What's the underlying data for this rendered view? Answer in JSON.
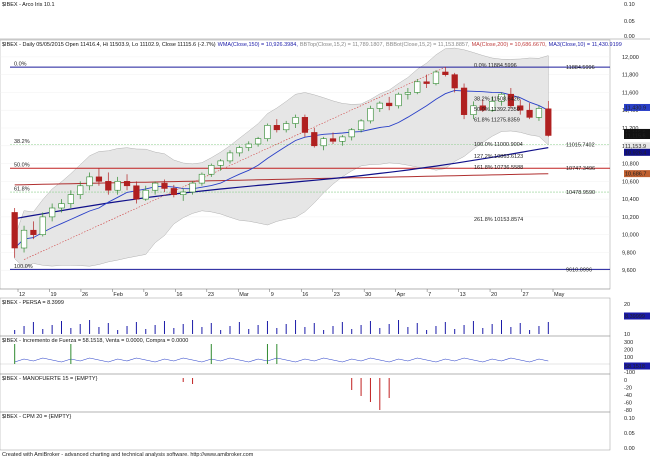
{
  "window_title": "$IBEX - Arco Iris 10.1",
  "main_header": {
    "symbol": "$IBEX - Daily 05/05/2015 Open 11416.4, Hi 11503.9, Lo 11102.9, Close 11115.6 (-2.7%)",
    "wma": "WMA(Close,150) = 10,926.3984,",
    "bbtop": "BBTop(Close,15,2) = 11,789.1807,",
    "bbbot": "BBBot(Close,15,2) = 11,153.8857,",
    "ma200": "MA(Close,200) = 10,686.6670,",
    "ma3": "MA3(Close,10) = 11,430.9199"
  },
  "price_axis_ticks": [
    "12,000",
    "11,800",
    "11,600",
    "11,400",
    "11,200",
    "11,000",
    "10,800",
    "10,600",
    "10,400",
    "10,200",
    "10,000",
    "9,800",
    "9,600"
  ],
  "price_axis_badges": {
    "ma10": "11,430.9",
    "close": "11,115.6",
    "close2": "11,115.6",
    "bbbot": "11,153.9",
    "wma": "10,926.4",
    "ma200": "10,686.7"
  },
  "time_axis": [
    "12",
    "19",
    "26",
    "Feb",
    "9",
    "16",
    "23",
    "Mar",
    "9",
    "16",
    "23",
    "30",
    "Apr",
    "7",
    "13",
    "20",
    "27",
    "May"
  ],
  "fib_levels": [
    {
      "label": "0.0%",
      "value": "11884.5996"
    },
    {
      "label": "38.2%",
      "value": "11015.7402"
    },
    {
      "label": "50.0%",
      "value": "10747.3496"
    },
    {
      "label": "61.8%",
      "value": "10478.9590"
    },
    {
      "label": "100.0%",
      "value": "9610.0996"
    }
  ],
  "fib_retracement_labels": [
    "0.0% 11884.5996",
    "38.2% 11508.6426",
    "50.0% 11392.2350",
    "61.8% 11275.8359",
    "100.0% 11000.9004",
    "127.2% 10863.6123",
    "161.8% 10736.5588",
    "261.8% 10153.8574"
  ],
  "indicator_panels": [
    {
      "title": "$IBEX - PERSA = 8.3999",
      "axis": [
        "20",
        "10"
      ],
      "badge": "8.39999"
    },
    {
      "title": "$IBEX - Incremento de Fuerza = 58.1518, Venta = 0.0000, Compra = 0.0000",
      "axis": [
        "300",
        "200",
        "100",
        "0",
        "-100"
      ],
      "badge": "58.1518"
    },
    {
      "title": "$IBEX - MANOFUERTE 15 = {EMPTY}",
      "axis": [
        "0",
        "-20",
        "-40",
        "-60",
        "-80"
      ],
      "badge": ""
    },
    {
      "title": "$IBEX - CPM 20 = {EMPTY}",
      "axis": [
        "0.10",
        "0.05",
        "0.00"
      ],
      "badge": ""
    }
  ],
  "top_axis": [
    "0.10",
    "0.05",
    "0.00"
  ],
  "footer": "Created with AmiBroker - advanced charting and technical analysis software. http://www.amibroker.com",
  "chart_data": {
    "type": "candlestick",
    "title": "$IBEX - Daily",
    "ylim": [
      9400,
      12100
    ],
    "x_labels": [
      "12",
      "19",
      "26",
      "Feb",
      "9",
      "16",
      "23",
      "Mar",
      "9",
      "16",
      "23",
      "30",
      "Apr",
      "7",
      "13",
      "20",
      "27",
      "May"
    ],
    "candles": [
      [
        10250,
        10300,
        9740,
        9850
      ],
      [
        9850,
        10100,
        9800,
        10050
      ],
      [
        10050,
        10150,
        9950,
        10000
      ],
      [
        10000,
        10250,
        9980,
        10200
      ],
      [
        10200,
        10350,
        10150,
        10300
      ],
      [
        10300,
        10400,
        10250,
        10350
      ],
      [
        10350,
        10500,
        10300,
        10450
      ],
      [
        10450,
        10600,
        10400,
        10550
      ],
      [
        10550,
        10700,
        10500,
        10650
      ],
      [
        10650,
        10750,
        10550,
        10600
      ],
      [
        10600,
        10700,
        10450,
        10500
      ],
      [
        10500,
        10650,
        10450,
        10600
      ],
      [
        10600,
        10680,
        10500,
        10550
      ],
      [
        10550,
        10600,
        10350,
        10400
      ],
      [
        10400,
        10550,
        10380,
        10500
      ],
      [
        10500,
        10600,
        10450,
        10580
      ],
      [
        10580,
        10620,
        10480,
        10520
      ],
      [
        10520,
        10560,
        10420,
        10450
      ],
      [
        10450,
        10520,
        10380,
        10480
      ],
      [
        10480,
        10600,
        10450,
        10580
      ],
      [
        10580,
        10700,
        10550,
        10680
      ],
      [
        10680,
        10800,
        10650,
        10780
      ],
      [
        10780,
        10850,
        10720,
        10830
      ],
      [
        10830,
        10950,
        10800,
        10920
      ],
      [
        10920,
        11000,
        10880,
        10980
      ],
      [
        10980,
        11050,
        10940,
        11020
      ],
      [
        11020,
        11100,
        10990,
        11080
      ],
      [
        11080,
        11250,
        11050,
        11230
      ],
      [
        11230,
        11300,
        11150,
        11180
      ],
      [
        11180,
        11280,
        11150,
        11250
      ],
      [
        11250,
        11350,
        11200,
        11320
      ],
      [
        11320,
        11350,
        11100,
        11150
      ],
      [
        11150,
        11200,
        10980,
        11000
      ],
      [
        11000,
        11100,
        10950,
        11080
      ],
      [
        11080,
        11150,
        11020,
        11050
      ],
      [
        11050,
        11120,
        11000,
        11100
      ],
      [
        11100,
        11200,
        11060,
        11180
      ],
      [
        11180,
        11300,
        11150,
        11280
      ],
      [
        11280,
        11450,
        11250,
        11420
      ],
      [
        11420,
        11500,
        11380,
        11480
      ],
      [
        11480,
        11550,
        11400,
        11450
      ],
      [
        11450,
        11600,
        11420,
        11580
      ],
      [
        11580,
        11650,
        11520,
        11600
      ],
      [
        11600,
        11750,
        11580,
        11720
      ],
      [
        11720,
        11800,
        11650,
        11700
      ],
      [
        11700,
        11850,
        11680,
        11830
      ],
      [
        11830,
        11884,
        11780,
        11800
      ],
      [
        11800,
        11820,
        11600,
        11650
      ],
      [
        11650,
        11700,
        11300,
        11350
      ],
      [
        11350,
        11500,
        11300,
        11450
      ],
      [
        11450,
        11520,
        11380,
        11400
      ],
      [
        11400,
        11550,
        11380,
        11500
      ],
      [
        11500,
        11600,
        11450,
        11580
      ],
      [
        11580,
        11650,
        11420,
        11450
      ],
      [
        11450,
        11520,
        11350,
        11400
      ],
      [
        11400,
        11480,
        11300,
        11320
      ],
      [
        11320,
        11450,
        11280,
        11420
      ],
      [
        11416,
        11504,
        11103,
        11116
      ]
    ]
  }
}
